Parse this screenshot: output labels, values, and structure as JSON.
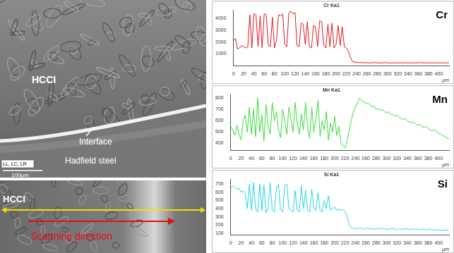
{
  "micrographs": [
    {
      "labels": [
        "HCCI",
        "Interface",
        "Hadfield steel"
      ],
      "info_box": "LL, LC, LR",
      "scale_bar": "100µm"
    },
    {
      "labels": [
        "HCCI"
      ],
      "arrow_label": "Scanning direction"
    }
  ],
  "chart_data": [
    {
      "type": "line",
      "title": "Cr Ka1",
      "annotation": "Cr",
      "x_label": "µm",
      "color": "#e0191e",
      "grid": false,
      "xlim": [
        0,
        420
      ],
      "xticks": [
        0,
        20,
        40,
        60,
        80,
        100,
        120,
        140,
        160,
        180,
        200,
        220,
        240,
        260,
        280,
        300,
        320,
        340,
        360,
        380,
        400
      ],
      "ylim": [
        0,
        4700
      ],
      "yticks": [
        1000,
        2000,
        3000,
        4000
      ],
      "x": [
        0,
        4,
        8,
        12,
        16,
        20,
        24,
        28,
        32,
        36,
        40,
        44,
        48,
        52,
        56,
        60,
        64,
        68,
        72,
        76,
        80,
        84,
        88,
        92,
        96,
        100,
        104,
        108,
        112,
        116,
        120,
        124,
        128,
        132,
        136,
        140,
        144,
        148,
        152,
        156,
        160,
        164,
        168,
        172,
        176,
        180,
        184,
        188,
        192,
        196,
        200,
        204,
        208,
        212,
        216,
        220,
        224,
        228,
        232,
        236,
        240,
        244,
        248,
        252,
        256,
        260,
        264,
        268,
        272,
        276,
        280,
        284,
        288,
        292,
        296,
        300,
        304,
        308,
        312,
        316,
        320,
        324,
        328,
        332,
        336,
        340,
        344,
        348,
        352,
        356,
        360,
        364,
        368,
        372,
        376,
        380,
        384,
        388,
        392,
        396,
        400,
        404,
        408,
        412,
        416,
        420
      ],
      "values": [
        2100,
        2300,
        1400,
        1500,
        1700,
        1600,
        1500,
        1600,
        4300,
        1500,
        4400,
        4300,
        1600,
        4200,
        1500,
        4400,
        4300,
        1700,
        1600,
        4100,
        1500,
        2200,
        4300,
        4200,
        4400,
        1800,
        1600,
        4500,
        4600,
        4400,
        4500,
        1700,
        1600,
        3600,
        3500,
        1800,
        3700,
        1600,
        1500,
        3400,
        3300,
        1600,
        3800,
        3700,
        1700,
        1500,
        3500,
        1600,
        3600,
        1500,
        1800,
        3400,
        1700,
        3300,
        1600,
        1500,
        1200,
        700,
        350,
        300,
        280,
        260,
        270,
        250,
        240,
        260,
        230,
        250,
        240,
        260,
        250,
        230,
        240,
        250,
        260,
        240,
        230,
        250,
        240,
        230,
        250,
        240,
        260,
        230,
        240,
        250,
        230,
        240,
        250,
        230,
        240,
        260,
        250,
        230,
        240,
        250,
        240,
        230,
        250,
        240,
        230,
        240,
        250,
        230,
        240,
        250
      ]
    },
    {
      "type": "line",
      "title": "Mn Ka1",
      "annotation": "Mn",
      "x_label": "µm",
      "color": "#3ddc3d",
      "grid": false,
      "xlim": [
        0,
        420
      ],
      "xticks": [
        0,
        20,
        40,
        60,
        80,
        100,
        120,
        140,
        160,
        180,
        200,
        220,
        240,
        260,
        280,
        300,
        320,
        340,
        360,
        380,
        400
      ],
      "ylim": [
        340,
        830
      ],
      "yticks": [
        400,
        500,
        600,
        700,
        800
      ],
      "x": [
        0,
        4,
        8,
        12,
        16,
        20,
        24,
        28,
        32,
        36,
        40,
        44,
        48,
        52,
        56,
        60,
        64,
        68,
        72,
        76,
        80,
        84,
        88,
        92,
        96,
        100,
        104,
        108,
        112,
        116,
        120,
        124,
        128,
        132,
        136,
        140,
        144,
        148,
        152,
        156,
        160,
        164,
        168,
        172,
        176,
        180,
        184,
        188,
        192,
        196,
        200,
        204,
        208,
        212,
        216,
        220,
        224,
        228,
        232,
        236,
        240,
        244,
        248,
        252,
        256,
        260,
        264,
        268,
        272,
        276,
        280,
        284,
        288,
        292,
        296,
        300,
        304,
        308,
        312,
        316,
        320,
        324,
        328,
        332,
        336,
        340,
        344,
        348,
        352,
        356,
        360,
        364,
        368,
        372,
        376,
        380,
        384,
        388,
        392,
        396,
        400,
        404,
        408,
        412,
        416,
        420
      ],
      "values": [
        550,
        520,
        470,
        560,
        480,
        430,
        600,
        650,
        500,
        720,
        480,
        700,
        460,
        800,
        500,
        650,
        420,
        740,
        560,
        480,
        760,
        600,
        680,
        520,
        450,
        700,
        600,
        480,
        720,
        620,
        500,
        760,
        580,
        480,
        660,
        520,
        760,
        540,
        450,
        720,
        500,
        620,
        780,
        460,
        600,
        520,
        680,
        430,
        580,
        500,
        640,
        470,
        550,
        400,
        380,
        360,
        420,
        520,
        600,
        680,
        720,
        760,
        800,
        780,
        770,
        750,
        760,
        740,
        720,
        730,
        700,
        710,
        690,
        700,
        680,
        670,
        680,
        660,
        650,
        640,
        650,
        630,
        620,
        610,
        620,
        600,
        590,
        580,
        590,
        570,
        560,
        570,
        550,
        540,
        550,
        530,
        520,
        510,
        520,
        500,
        490,
        480,
        470,
        460,
        450,
        440
      ]
    },
    {
      "type": "line",
      "title": "Si Ka1",
      "annotation": "Si",
      "x_label": "µm",
      "color": "#29d4e6",
      "grid": false,
      "xlim": [
        0,
        420
      ],
      "xticks": [
        0,
        20,
        40,
        60,
        80,
        100,
        120,
        140,
        160,
        180,
        200,
        220,
        240,
        260,
        280,
        300,
        320,
        340,
        360,
        380,
        400
      ],
      "ylim": [
        80,
        760
      ],
      "yticks": [
        100,
        200,
        300,
        400,
        500,
        600,
        700
      ],
      "x": [
        0,
        4,
        8,
        12,
        16,
        20,
        24,
        28,
        32,
        36,
        40,
        44,
        48,
        52,
        56,
        60,
        64,
        68,
        72,
        76,
        80,
        84,
        88,
        92,
        96,
        100,
        104,
        108,
        112,
        116,
        120,
        124,
        128,
        132,
        136,
        140,
        144,
        148,
        152,
        156,
        160,
        164,
        168,
        172,
        176,
        180,
        184,
        188,
        192,
        196,
        200,
        204,
        208,
        212,
        216,
        220,
        224,
        228,
        232,
        236,
        240,
        244,
        248,
        252,
        256,
        260,
        264,
        268,
        272,
        276,
        280,
        284,
        288,
        292,
        296,
        300,
        304,
        308,
        312,
        316,
        320,
        324,
        328,
        332,
        336,
        340,
        344,
        348,
        352,
        356,
        360,
        364,
        368,
        372,
        376,
        380,
        384,
        388,
        392,
        396,
        400,
        404,
        408,
        412,
        416,
        420
      ],
      "values": [
        650,
        680,
        660,
        640,
        650,
        600,
        620,
        580,
        400,
        700,
        380,
        720,
        400,
        360,
        700,
        380,
        690,
        350,
        400,
        720,
        380,
        360,
        650,
        700,
        380,
        360,
        680,
        700,
        400,
        380,
        360,
        620,
        380,
        360,
        680,
        400,
        620,
        380,
        360,
        640,
        400,
        380,
        600,
        380,
        360,
        500,
        400,
        560,
        380,
        400,
        420,
        380,
        400,
        380,
        390,
        370,
        300,
        200,
        170,
        160,
        160,
        150,
        170,
        160,
        150,
        155,
        165,
        150,
        160,
        145,
        155,
        160,
        150,
        165,
        155,
        145,
        150,
        160,
        155,
        150,
        140,
        155,
        150,
        145,
        160,
        150,
        140,
        150,
        155,
        145,
        150,
        140,
        145,
        150,
        135,
        145,
        150,
        140,
        135,
        145,
        140,
        130,
        140,
        135,
        140,
        130
      ]
    }
  ]
}
